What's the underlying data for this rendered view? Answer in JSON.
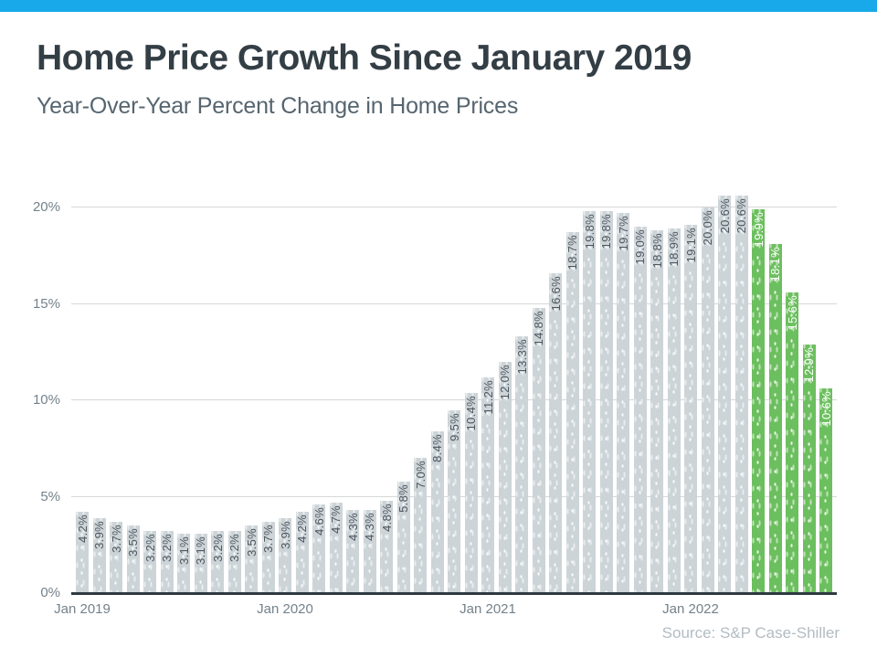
{
  "page": {
    "title": "Home Price Growth Since January 2019",
    "subtitle": "Year-Over-Year Percent Change in Home Prices",
    "source_note": "Source: S&P Case-Shiller"
  },
  "theme": {
    "accent_bar": "#17a9e9",
    "bar_default": "#ccd4d8",
    "bar_highlight": "#6cbf5e",
    "bar_label_default": "#4d565e",
    "bar_label_highlight": "#ffffff",
    "gridline": "#d6d7d8",
    "axis_line": "#2e3a41",
    "tick_label": "#74828b",
    "title_color": "#333e45",
    "subtitle_color": "#56656f",
    "source_color": "#b2bcc2"
  },
  "chart_data": {
    "type": "bar",
    "title": "Home Price Growth Since January 2019",
    "subtitle": "Year-Over-Year Percent Change in Home Prices",
    "xlabel": "",
    "ylabel": "Year-over-year percent change in home prices",
    "ylim": [
      0,
      20
    ],
    "grid": true,
    "legend": false,
    "y_ticks": [
      {
        "value": 0,
        "label": "0%"
      },
      {
        "value": 5,
        "label": "5%"
      },
      {
        "value": 10,
        "label": "10%"
      },
      {
        "value": 15,
        "label": "15%"
      },
      {
        "value": 20,
        "label": "20%"
      }
    ],
    "x_ticks": [
      {
        "bar_index": 0,
        "label": "Jan 2019"
      },
      {
        "bar_index": 12,
        "label": "Jan 2020"
      },
      {
        "bar_index": 24,
        "label": "Jan 2021"
      },
      {
        "bar_index": 36,
        "label": "Jan 2022"
      }
    ],
    "values": [
      4.2,
      3.9,
      3.7,
      3.5,
      3.2,
      3.2,
      3.1,
      3.1,
      3.2,
      3.2,
      3.5,
      3.7,
      3.9,
      4.2,
      4.6,
      4.7,
      4.3,
      4.3,
      4.8,
      5.8,
      7.0,
      8.4,
      9.5,
      10.4,
      11.2,
      12.0,
      13.3,
      14.8,
      16.6,
      18.7,
      19.8,
      19.8,
      19.7,
      19.0,
      18.8,
      18.9,
      19.1,
      20.0,
      20.6,
      20.6,
      19.9,
      18.1,
      15.6,
      12.9,
      10.6
    ],
    "bar_labels": [
      "4.2%",
      "3.9%",
      "3.7%",
      "3.5%",
      "3.2%",
      "3.2%",
      "3.1%",
      "3.1%",
      "3.2%",
      "3.2%",
      "3.5%",
      "3.7%",
      "3.9%",
      "4.2%",
      "4.6%",
      "4.7%",
      "4.3%",
      "4.3%",
      "4.8%",
      "5.8%",
      "7.0%",
      "8.4%",
      "9.5%",
      "10.4%",
      "11.2%",
      "12.0%",
      "13.3%",
      "14.8%",
      "16.6%",
      "18.7%",
      "19.8%",
      "19.8%",
      "19.7%",
      "19.0%",
      "18.8%",
      "18.9%",
      "19.1%",
      "20.0%",
      "20.6%",
      "20.6%",
      "19.9%",
      "18.1%",
      "15.6%",
      "12.9%",
      "10.6%"
    ],
    "highlight_start_index": 40
  }
}
